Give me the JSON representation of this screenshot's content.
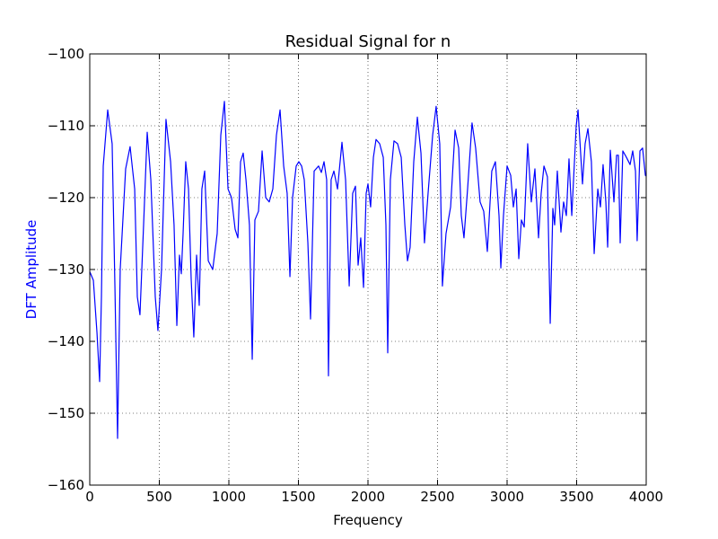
{
  "chart_data": {
    "type": "line",
    "title": "Residual Signal for n",
    "xlabel": "Frequency",
    "ylabel": "DFT Amplitude",
    "ylabel_color": "#0000ff",
    "color": "#0000ff",
    "grid": true,
    "xlim": [
      0,
      4000
    ],
    "xticks": [
      0,
      500,
      1000,
      1500,
      2000,
      2500,
      3000,
      3500,
      4000
    ],
    "ylim": [
      -160,
      -100
    ],
    "yticks": [
      {
        "value": -160,
        "label": "−160"
      },
      {
        "value": -150,
        "label": "−150"
      },
      {
        "value": -140,
        "label": "−140"
      },
      {
        "value": -130,
        "label": "−130"
      },
      {
        "value": -120,
        "label": "−120"
      },
      {
        "value": -110,
        "label": "−110"
      },
      {
        "value": -100,
        "label": "−100"
      }
    ],
    "x": [
      0,
      26,
      52,
      71,
      84,
      97,
      129,
      161,
      181,
      200,
      219,
      258,
      290,
      323,
      342,
      361,
      387,
      413,
      439,
      471,
      490,
      516,
      548,
      581,
      606,
      626,
      645,
      658,
      671,
      690,
      710,
      729,
      748,
      768,
      787,
      806,
      826,
      852,
      884,
      916,
      942,
      968,
      994,
      1019,
      1045,
      1065,
      1084,
      1103,
      1123,
      1148,
      1168,
      1187,
      1213,
      1239,
      1265,
      1290,
      1316,
      1342,
      1368,
      1394,
      1419,
      1439,
      1458,
      1484,
      1503,
      1523,
      1542,
      1568,
      1587,
      1613,
      1645,
      1665,
      1684,
      1703,
      1716,
      1735,
      1755,
      1781,
      1813,
      1839,
      1865,
      1890,
      1910,
      1929,
      1948,
      1968,
      1987,
      2000,
      2019,
      2039,
      2058,
      2084,
      2110,
      2129,
      2142,
      2161,
      2187,
      2213,
      2239,
      2265,
      2284,
      2303,
      2329,
      2355,
      2381,
      2406,
      2432,
      2465,
      2490,
      2516,
      2535,
      2561,
      2594,
      2626,
      2652,
      2671,
      2690,
      2716,
      2748,
      2774,
      2806,
      2832,
      2858,
      2890,
      2916,
      2942,
      2955,
      2974,
      3000,
      3026,
      3045,
      3065,
      3084,
      3103,
      3123,
      3148,
      3174,
      3200,
      3226,
      3245,
      3265,
      3290,
      3310,
      3329,
      3342,
      3361,
      3387,
      3406,
      3426,
      3445,
      3465,
      3497,
      3510,
      3542,
      3561,
      3581,
      3606,
      3626,
      3652,
      3671,
      3690,
      3710,
      3723,
      3742,
      3768,
      3787,
      3800,
      3813,
      3832,
      3858,
      3884,
      3903,
      3923,
      3935,
      3955,
      3974,
      3994,
      4000
    ],
    "values": [
      -130.3,
      -131.5,
      -138.8,
      -145.6,
      -133.8,
      -115.6,
      -107.8,
      -112.5,
      -132.5,
      -153.5,
      -130,
      -116,
      -112.9,
      -118.8,
      -133.8,
      -136.3,
      -123.8,
      -110.9,
      -117.5,
      -133.8,
      -138.5,
      -130,
      -109.1,
      -115,
      -123.8,
      -137.8,
      -128,
      -130.6,
      -125,
      -115,
      -118.8,
      -131.3,
      -139.4,
      -128,
      -135,
      -118.8,
      -116.3,
      -128.8,
      -130,
      -125,
      -111.3,
      -106.6,
      -118.8,
      -120,
      -124.4,
      -125.6,
      -115,
      -113.8,
      -117.5,
      -123.8,
      -142.5,
      -123.1,
      -121.9,
      -113.5,
      -120,
      -120.6,
      -118.8,
      -111.3,
      -107.8,
      -115.6,
      -119.4,
      -131,
      -120,
      -115.6,
      -115,
      -115.6,
      -117.5,
      -126.3,
      -136.9,
      -116.3,
      -115.6,
      -116.5,
      -115,
      -117.5,
      -144.8,
      -117.5,
      -116.3,
      -118.8,
      -112.3,
      -117.5,
      -132.3,
      -119.4,
      -118.4,
      -129.4,
      -125.6,
      -132.5,
      -119.4,
      -118.1,
      -121.3,
      -114.4,
      -111.9,
      -112.5,
      -114.4,
      -123.8,
      -141.6,
      -117.5,
      -112.1,
      -112.5,
      -114.4,
      -123.8,
      -128.8,
      -126.9,
      -115,
      -108.8,
      -113.8,
      -126.3,
      -119.4,
      -111.3,
      -107.3,
      -112.5,
      -132.3,
      -125,
      -121.3,
      -110.6,
      -113.1,
      -122.5,
      -125.6,
      -118.8,
      -109.6,
      -113.1,
      -120.6,
      -121.9,
      -127.5,
      -116.3,
      -115,
      -122.5,
      -129.8,
      -122.5,
      -115.6,
      -116.9,
      -121.3,
      -118.8,
      -128.5,
      -123.1,
      -124.1,
      -112.5,
      -120.6,
      -116,
      -125.6,
      -119.4,
      -115.6,
      -117.1,
      -137.5,
      -121.5,
      -123.8,
      -116.3,
      -124.8,
      -120.6,
      -122.5,
      -114.6,
      -122.5,
      -110,
      -107.8,
      -118.1,
      -112.5,
      -110.4,
      -115,
      -127.8,
      -118.8,
      -121.3,
      -115.4,
      -120.6,
      -126.9,
      -113.4,
      -120.6,
      -114.1,
      -114.1,
      -126.3,
      -113.5,
      -114.4,
      -115.4,
      -113.5,
      -116.3,
      -126,
      -113.5,
      -113.1,
      -116.9,
      -117
    ]
  }
}
